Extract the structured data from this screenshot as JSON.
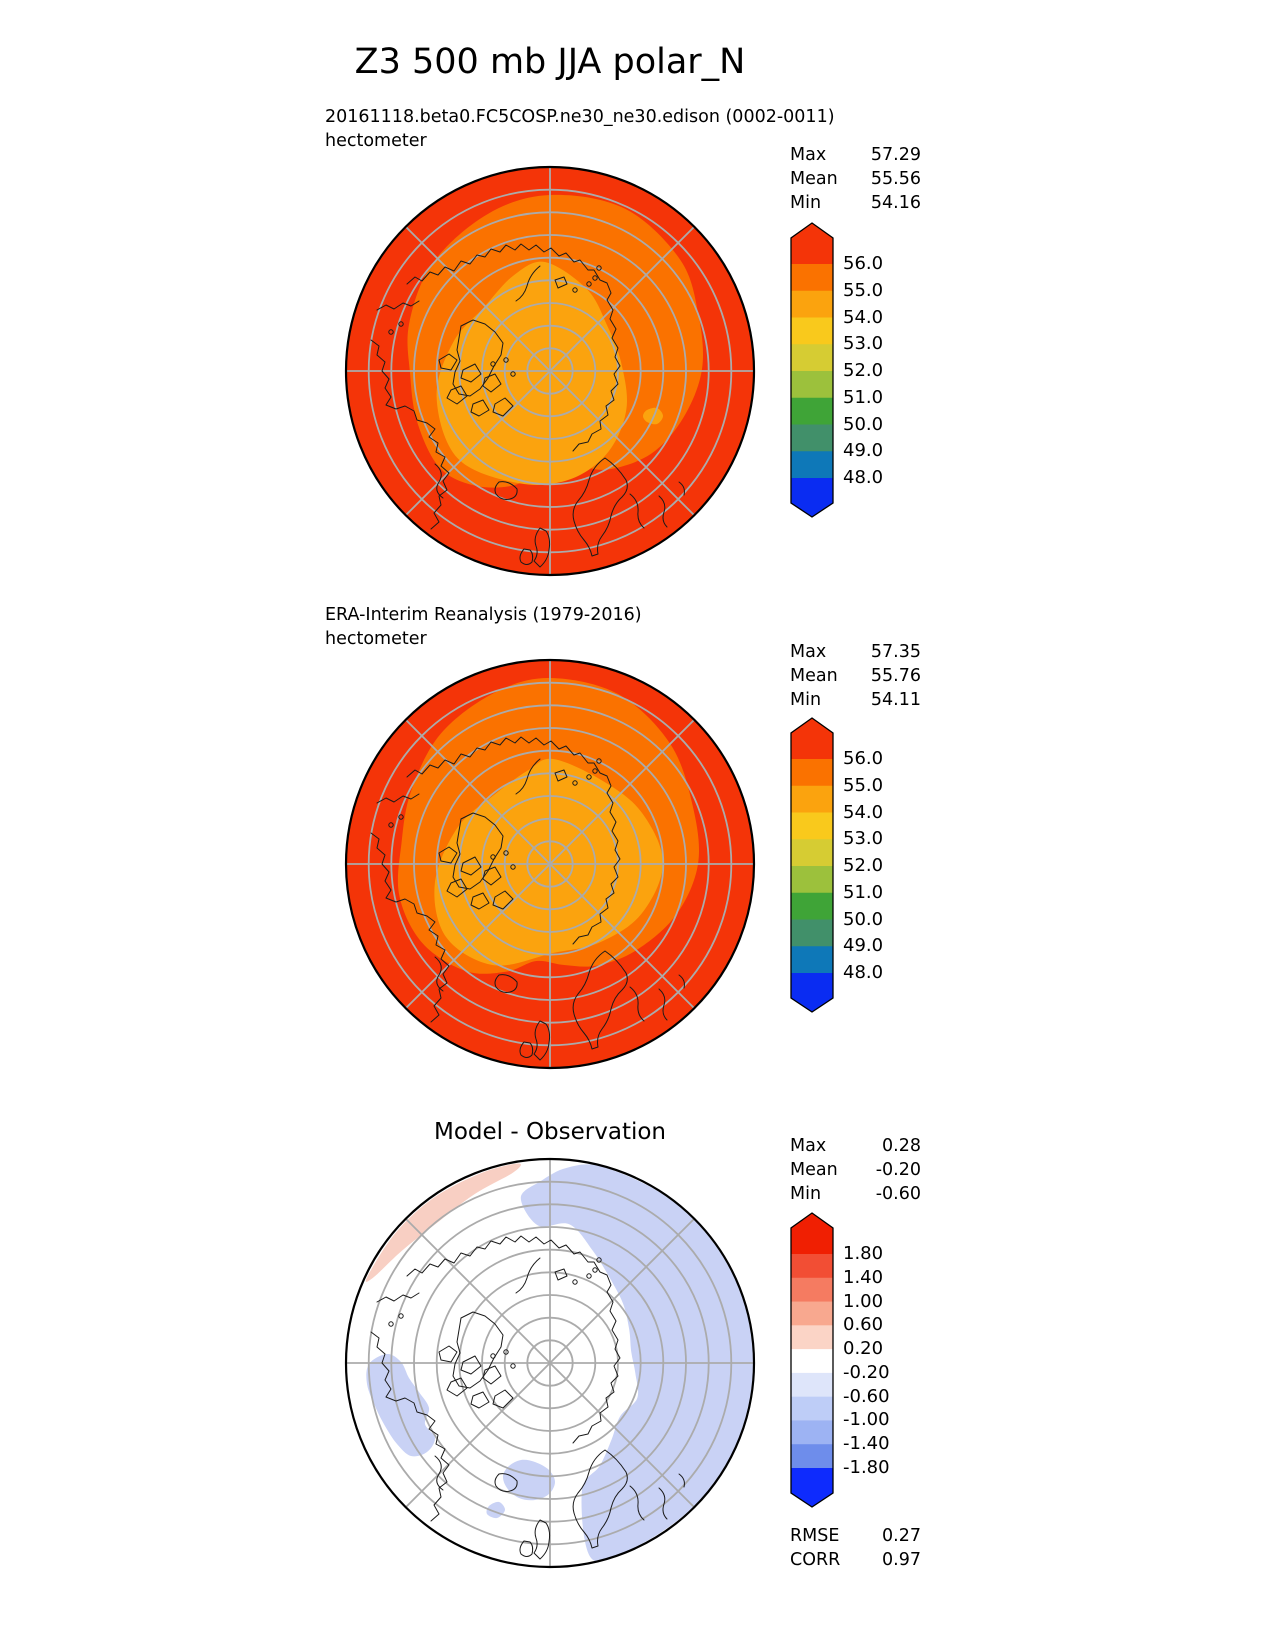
{
  "title": "Z3 500 mb JJA polar_N",
  "panels": [
    {
      "name": "model",
      "subtitle": "20161118.beta0.FC5COSP.ne30_ne30.edison (0002-0011)",
      "units": "hectometer",
      "stats": [
        [
          "Max",
          "57.29"
        ],
        [
          "Mean",
          "55.56"
        ],
        [
          "Min",
          "54.16"
        ]
      ],
      "colorbar": {
        "labels": [
          "56.0",
          "55.0",
          "54.0",
          "53.0",
          "52.0",
          "51.0",
          "50.0",
          "49.0",
          "48.0"
        ],
        "colors": [
          "#f43408",
          "#fa7200",
          "#fba30e",
          "#f9c91c",
          "#d6cc33",
          "#9cc13c",
          "#3fa437",
          "#41906a",
          "#0e78b8",
          "#0a2cf2"
        ]
      },
      "map_colors": {
        "base": "#f43408",
        "mid": "#fa7200",
        "inner": "#fba30e"
      }
    },
    {
      "name": "observation",
      "subtitle": "ERA-Interim Reanalysis (1979-2016)",
      "units": "hectometer",
      "stats": [
        [
          "Max",
          "57.35"
        ],
        [
          "Mean",
          "55.76"
        ],
        [
          "Min",
          "54.11"
        ]
      ],
      "colorbar": {
        "labels": [
          "56.0",
          "55.0",
          "54.0",
          "53.0",
          "52.0",
          "51.0",
          "50.0",
          "49.0",
          "48.0"
        ],
        "colors": [
          "#f43408",
          "#fa7200",
          "#fba30e",
          "#f9c91c",
          "#d6cc33",
          "#9cc13c",
          "#3fa437",
          "#41906a",
          "#0e78b8",
          "#0a2cf2"
        ]
      },
      "map_colors": {
        "base": "#f43408",
        "mid": "#fa7200",
        "inner": "#fba30e"
      }
    },
    {
      "name": "difference",
      "title": "Model - Observation",
      "stats": [
        [
          "Max",
          "0.28"
        ],
        [
          "Mean",
          "-0.20"
        ],
        [
          "Min",
          "-0.60"
        ]
      ],
      "colorbar": {
        "labels": [
          "1.80",
          "1.40",
          "1.00",
          "0.60",
          "0.20",
          "-0.20",
          "-0.60",
          "-1.00",
          "-1.40",
          "-1.80"
        ],
        "colors": [
          "#f01f02",
          "#f24e34",
          "#f57b61",
          "#f8a88f",
          "#fbd4c6",
          "#ffffff",
          "#dee5fa",
          "#becdf7",
          "#9db3f3",
          "#6e8deb",
          "#0e2bfd"
        ]
      },
      "map_colors": {
        "base": "#ffffff",
        "neg": "#c9d2f5",
        "pos": "#f8cfc3"
      },
      "footer_stats": [
        [
          "RMSE",
          "0.27"
        ],
        [
          "CORR",
          "0.97"
        ]
      ]
    }
  ],
  "chart_data": [
    {
      "type": "heatmap",
      "projection": "north-polar-stereographic",
      "variable": "Z3 500 mb JJA",
      "title": "20161118.beta0.FC5COSP.ne30_ne30.edison (0002-0011)",
      "units": "hectometer",
      "max": 57.29,
      "mean": 55.56,
      "min": 54.16,
      "levels": [
        48,
        49,
        50,
        51,
        52,
        53,
        54,
        55,
        56
      ],
      "legend_position": "right",
      "grid": true
    },
    {
      "type": "heatmap",
      "projection": "north-polar-stereographic",
      "variable": "Z3 500 mb JJA",
      "title": "ERA-Interim Reanalysis (1979-2016)",
      "units": "hectometer",
      "max": 57.35,
      "mean": 55.76,
      "min": 54.11,
      "levels": [
        48,
        49,
        50,
        51,
        52,
        53,
        54,
        55,
        56
      ],
      "legend_position": "right",
      "grid": true
    },
    {
      "type": "heatmap",
      "projection": "north-polar-stereographic",
      "variable": "Z3 500 mb JJA",
      "title": "Model - Observation",
      "units": "hectometer",
      "max": 0.28,
      "mean": -0.2,
      "min": -0.6,
      "levels": [
        -1.8,
        -1.4,
        -1.0,
        -0.6,
        -0.2,
        0.2,
        0.6,
        1.0,
        1.4,
        1.8
      ],
      "rmse": 0.27,
      "corr": 0.97,
      "legend_position": "right",
      "grid": true
    }
  ]
}
